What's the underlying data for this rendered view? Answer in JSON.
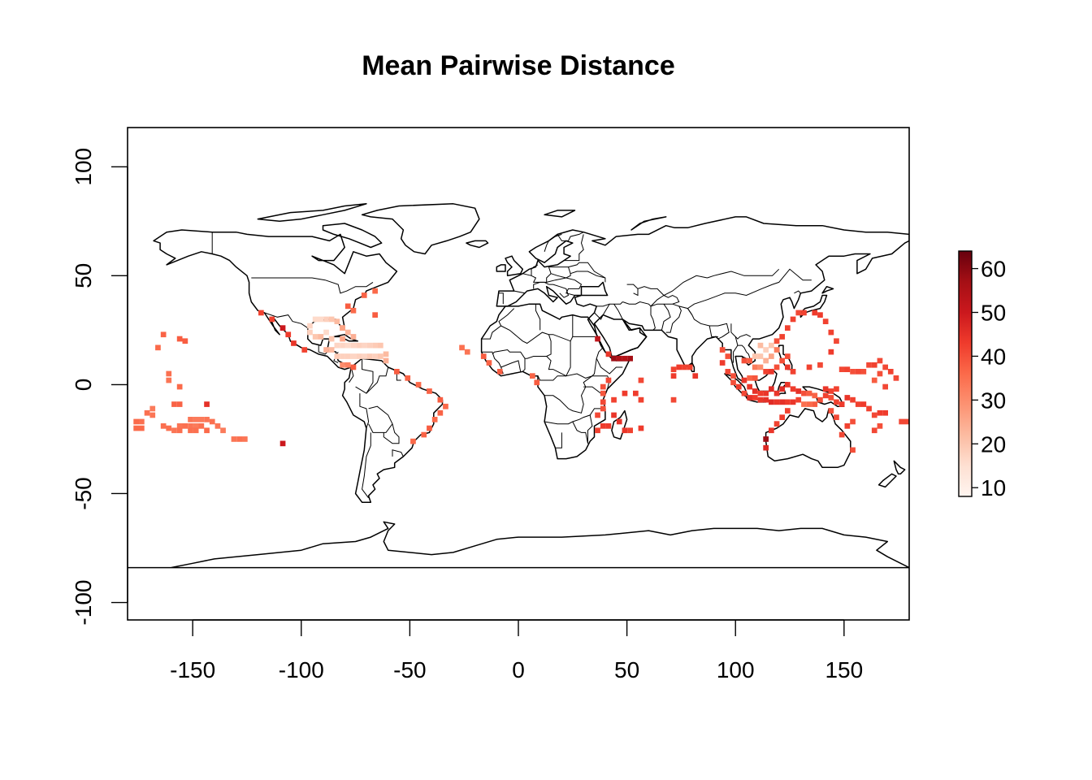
{
  "chart_data": {
    "type": "heatmap",
    "title": "Mean Pairwise Distance",
    "xlabel": "",
    "ylabel": "",
    "xlim": [
      -180,
      180
    ],
    "ylim": [
      -108,
      118
    ],
    "x_ticks": [
      -150,
      -100,
      -50,
      0,
      50,
      100,
      150
    ],
    "y_ticks": [
      -100,
      -50,
      0,
      50,
      100
    ],
    "x_tick_labels": [
      "-150",
      "-100",
      "-50",
      "0",
      "50",
      "100",
      "150"
    ],
    "y_tick_labels": [
      "-100",
      "-50",
      "0",
      "50",
      "100"
    ],
    "legend": {
      "placement": "right",
      "range": [
        8,
        64
      ],
      "ticks": [
        10,
        20,
        30,
        40,
        50,
        60
      ],
      "tick_labels": [
        "10",
        "20",
        "30",
        "40",
        "50",
        "60"
      ],
      "colors": [
        "#FFF5F0",
        "#FEE0D2",
        "#FCBBA1",
        "#FC9272",
        "#FB6A4A",
        "#EF3B2C",
        "#CB181D",
        "#A50F15",
        "#67000D"
      ]
    },
    "cell_size_deg": 2.5,
    "cells": [
      {
        "x": -176,
        "y": -17,
        "v": 36
      },
      {
        "x": -176,
        "y": -20,
        "v": 36
      },
      {
        "x": -173.5,
        "y": -17,
        "v": 35
      },
      {
        "x": -173.5,
        "y": -20,
        "v": 36
      },
      {
        "x": -171,
        "y": -13,
        "v": 35
      },
      {
        "x": -168.5,
        "y": -11,
        "v": 33
      },
      {
        "x": -168.5,
        "y": -14,
        "v": 34
      },
      {
        "x": -163.5,
        "y": -19,
        "v": 35
      },
      {
        "x": -166,
        "y": 17,
        "v": 36
      },
      {
        "x": -163.5,
        "y": 23,
        "v": 37
      },
      {
        "x": -156,
        "y": 21,
        "v": 38
      },
      {
        "x": -153.5,
        "y": 20,
        "v": 38
      },
      {
        "x": -161,
        "y": 5,
        "v": 35
      },
      {
        "x": -161,
        "y": 2,
        "v": 34
      },
      {
        "x": -156,
        "y": -1,
        "v": 36
      },
      {
        "x": -158.5,
        "y": -9,
        "v": 37
      },
      {
        "x": -156,
        "y": -9,
        "v": 37
      },
      {
        "x": -143.5,
        "y": -9,
        "v": 45
      },
      {
        "x": -151,
        "y": -16,
        "v": 34
      },
      {
        "x": -148.5,
        "y": -16,
        "v": 33
      },
      {
        "x": -146,
        "y": -16,
        "v": 33
      },
      {
        "x": -143.5,
        "y": -16,
        "v": 34
      },
      {
        "x": -141,
        "y": -17,
        "v": 35
      },
      {
        "x": -156,
        "y": -19,
        "v": 34
      },
      {
        "x": -153.5,
        "y": -19,
        "v": 35
      },
      {
        "x": -151,
        "y": -19,
        "v": 34
      },
      {
        "x": -148.5,
        "y": -19,
        "v": 33
      },
      {
        "x": -146,
        "y": -19,
        "v": 35
      },
      {
        "x": -161,
        "y": -20,
        "v": 35
      },
      {
        "x": -158.5,
        "y": -21,
        "v": 34
      },
      {
        "x": -156,
        "y": -21,
        "v": 35
      },
      {
        "x": -151,
        "y": -21,
        "v": 35
      },
      {
        "x": -148.5,
        "y": -21,
        "v": 35
      },
      {
        "x": -143.5,
        "y": -21,
        "v": 36
      },
      {
        "x": -138.5,
        "y": -19,
        "v": 34
      },
      {
        "x": -136,
        "y": -21,
        "v": 33
      },
      {
        "x": -131,
        "y": -25,
        "v": 34
      },
      {
        "x": -128.5,
        "y": -25,
        "v": 35
      },
      {
        "x": -126,
        "y": -25,
        "v": 34
      },
      {
        "x": -108.5,
        "y": -27,
        "v": 50
      },
      {
        "x": -118.5,
        "y": 33,
        "v": 42
      },
      {
        "x": -113.5,
        "y": 30,
        "v": 42
      },
      {
        "x": -108.5,
        "y": 26,
        "v": 50
      },
      {
        "x": -106,
        "y": 23,
        "v": 43
      },
      {
        "x": -103.5,
        "y": 19,
        "v": 44
      },
      {
        "x": -98.5,
        "y": 16,
        "v": 42
      },
      {
        "x": -93.5,
        "y": 30,
        "v": 16
      },
      {
        "x": -91,
        "y": 30,
        "v": 16
      },
      {
        "x": -88.5,
        "y": 30,
        "v": 18
      },
      {
        "x": -86,
        "y": 30,
        "v": 20
      },
      {
        "x": -83.5,
        "y": 29,
        "v": 22
      },
      {
        "x": -96,
        "y": 27,
        "v": 17
      },
      {
        "x": -96,
        "y": 24,
        "v": 18
      },
      {
        "x": -93.5,
        "y": 22,
        "v": 20
      },
      {
        "x": -91,
        "y": 22,
        "v": 22
      },
      {
        "x": -88.5,
        "y": 24,
        "v": 16
      },
      {
        "x": -86,
        "y": 21,
        "v": 20
      },
      {
        "x": -81,
        "y": 26,
        "v": 25
      },
      {
        "x": -78.5,
        "y": 24,
        "v": 23
      },
      {
        "x": -76,
        "y": 22,
        "v": 24
      },
      {
        "x": -81,
        "y": 21,
        "v": 26
      },
      {
        "x": -83.5,
        "y": 18,
        "v": 17
      },
      {
        "x": -81,
        "y": 18,
        "v": 17
      },
      {
        "x": -78.5,
        "y": 18,
        "v": 16
      },
      {
        "x": -76,
        "y": 18,
        "v": 17
      },
      {
        "x": -73.5,
        "y": 18,
        "v": 18
      },
      {
        "x": -71,
        "y": 18,
        "v": 17
      },
      {
        "x": -68.5,
        "y": 18,
        "v": 18
      },
      {
        "x": -66,
        "y": 18,
        "v": 19
      },
      {
        "x": -63.5,
        "y": 18,
        "v": 20
      },
      {
        "x": -83.5,
        "y": 13,
        "v": 19
      },
      {
        "x": -81,
        "y": 13,
        "v": 18
      },
      {
        "x": -78.5,
        "y": 13,
        "v": 18
      },
      {
        "x": -76,
        "y": 13,
        "v": 17
      },
      {
        "x": -73.5,
        "y": 13,
        "v": 18
      },
      {
        "x": -71,
        "y": 13,
        "v": 17
      },
      {
        "x": -68.5,
        "y": 13,
        "v": 19
      },
      {
        "x": -66,
        "y": 13,
        "v": 18
      },
      {
        "x": -63.5,
        "y": 13,
        "v": 20
      },
      {
        "x": -61,
        "y": 14,
        "v": 22
      },
      {
        "x": -61,
        "y": 11,
        "v": 24
      },
      {
        "x": -86,
        "y": 16,
        "v": 22
      },
      {
        "x": -88.5,
        "y": 16,
        "v": 24
      },
      {
        "x": -81,
        "y": 9,
        "v": 30
      },
      {
        "x": -78.5,
        "y": 9,
        "v": 32
      },
      {
        "x": -76,
        "y": 8,
        "v": 38
      },
      {
        "x": -81,
        "y": 26,
        "v": 26
      },
      {
        "x": -78.5,
        "y": 36,
        "v": 38
      },
      {
        "x": -76,
        "y": 34,
        "v": 36
      },
      {
        "x": -66,
        "y": 32,
        "v": 38
      },
      {
        "x": -71,
        "y": 41,
        "v": 37
      },
      {
        "x": -66,
        "y": 43,
        "v": 36
      },
      {
        "x": -56,
        "y": 6,
        "v": 38
      },
      {
        "x": -51,
        "y": 3,
        "v": 37
      },
      {
        "x": -46,
        "y": 0,
        "v": 36
      },
      {
        "x": -41,
        "y": -3,
        "v": 37
      },
      {
        "x": -36,
        "y": -7,
        "v": 38
      },
      {
        "x": -33.5,
        "y": -10,
        "v": 36
      },
      {
        "x": -36,
        "y": -13,
        "v": 37
      },
      {
        "x": -38.5,
        "y": -16,
        "v": 36
      },
      {
        "x": -41,
        "y": -20,
        "v": 38
      },
      {
        "x": -43.5,
        "y": -23,
        "v": 37
      },
      {
        "x": -48.5,
        "y": -26,
        "v": 36
      },
      {
        "x": -26,
        "y": 17,
        "v": 35
      },
      {
        "x": -23.5,
        "y": 15,
        "v": 34
      },
      {
        "x": -16,
        "y": 13,
        "v": 38
      },
      {
        "x": -13.5,
        "y": 10,
        "v": 37
      },
      {
        "x": -8.5,
        "y": 6,
        "v": 38
      },
      {
        "x": 6.5,
        "y": 4,
        "v": 37
      },
      {
        "x": 8.5,
        "y": 1,
        "v": 38
      },
      {
        "x": 36.5,
        "y": 21,
        "v": 52
      },
      {
        "x": 41.5,
        "y": 14,
        "v": 44
      },
      {
        "x": 44,
        "y": 12,
        "v": 58
      },
      {
        "x": 46.5,
        "y": 12,
        "v": 55
      },
      {
        "x": 49,
        "y": 12,
        "v": 54
      },
      {
        "x": 51.5,
        "y": 12,
        "v": 57
      },
      {
        "x": 41.5,
        "y": 2,
        "v": 41
      },
      {
        "x": 39,
        "y": -1,
        "v": 40
      },
      {
        "x": 39,
        "y": -4,
        "v": 39
      },
      {
        "x": 39,
        "y": -8,
        "v": 41
      },
      {
        "x": 39,
        "y": -11,
        "v": 40
      },
      {
        "x": 36.5,
        "y": -14,
        "v": 41
      },
      {
        "x": 39,
        "y": -19,
        "v": 43
      },
      {
        "x": 36.5,
        "y": -21,
        "v": 42
      },
      {
        "x": 44,
        "y": -14,
        "v": 44
      },
      {
        "x": 41.5,
        "y": -19,
        "v": 43
      },
      {
        "x": 46.5,
        "y": -17,
        "v": 45
      },
      {
        "x": 49,
        "y": -21,
        "v": 44
      },
      {
        "x": 44,
        "y": -7,
        "v": 42
      },
      {
        "x": 49,
        "y": -4,
        "v": 43
      },
      {
        "x": 56.5,
        "y": -7,
        "v": 42
      },
      {
        "x": 54,
        "y": -4,
        "v": 43
      },
      {
        "x": 56.5,
        "y": -20,
        "v": 43
      },
      {
        "x": 51.5,
        "y": -21,
        "v": 42
      },
      {
        "x": 56.5,
        "y": 2,
        "v": 41
      },
      {
        "x": 71.5,
        "y": 7,
        "v": 42
      },
      {
        "x": 71.5,
        "y": 4,
        "v": 43
      },
      {
        "x": 71.5,
        "y": -7,
        "v": 41
      },
      {
        "x": 74,
        "y": 8,
        "v": 43
      },
      {
        "x": 76.5,
        "y": 8,
        "v": 42
      },
      {
        "x": 79,
        "y": 8,
        "v": 42
      },
      {
        "x": 81.5,
        "y": 4,
        "v": 44
      },
      {
        "x": 94,
        "y": 16,
        "v": 40
      },
      {
        "x": 96.5,
        "y": 13,
        "v": 40
      },
      {
        "x": 94,
        "y": 10,
        "v": 43
      },
      {
        "x": 96.5,
        "y": 6,
        "v": 41
      },
      {
        "x": 99,
        "y": 4,
        "v": 40
      },
      {
        "x": 99,
        "y": 1,
        "v": 40
      },
      {
        "x": 101.5,
        "y": -1,
        "v": 43
      },
      {
        "x": 104,
        "y": -4,
        "v": 41
      },
      {
        "x": 104,
        "y": 11,
        "v": 40
      },
      {
        "x": 106.5,
        "y": 11,
        "v": 38
      },
      {
        "x": 109,
        "y": 13,
        "v": 20
      },
      {
        "x": 111.5,
        "y": 13,
        "v": 20
      },
      {
        "x": 114,
        "y": 16,
        "v": 18
      },
      {
        "x": 116.5,
        "y": 18,
        "v": 20
      },
      {
        "x": 111.5,
        "y": 18,
        "v": 22
      },
      {
        "x": 109,
        "y": 8,
        "v": 33
      },
      {
        "x": 111.5,
        "y": 8,
        "v": 30
      },
      {
        "x": 114,
        "y": 11,
        "v": 24
      },
      {
        "x": 116.5,
        "y": 13,
        "v": 26
      },
      {
        "x": 119,
        "y": 16,
        "v": 33
      },
      {
        "x": 119,
        "y": 20,
        "v": 40
      },
      {
        "x": 121.5,
        "y": 22,
        "v": 42
      },
      {
        "x": 114,
        "y": 6,
        "v": 42
      },
      {
        "x": 116.5,
        "y": 6,
        "v": 44
      },
      {
        "x": 119,
        "y": 8,
        "v": 40
      },
      {
        "x": 121.5,
        "y": 11,
        "v": 40
      },
      {
        "x": 124,
        "y": 13,
        "v": 40
      },
      {
        "x": 124,
        "y": 8,
        "v": 44
      },
      {
        "x": 126.5,
        "y": 6,
        "v": 42
      },
      {
        "x": 106.5,
        "y": 3,
        "v": 37
      },
      {
        "x": 109,
        "y": 3,
        "v": 39
      },
      {
        "x": 104,
        "y": 2,
        "v": 44
      },
      {
        "x": 106.5,
        "y": -1,
        "v": 44
      },
      {
        "x": 109,
        "y": -3,
        "v": 45
      },
      {
        "x": 111.5,
        "y": -4,
        "v": 43
      },
      {
        "x": 114,
        "y": -4,
        "v": 44
      },
      {
        "x": 116.5,
        "y": -2,
        "v": 46
      },
      {
        "x": 119,
        "y": -4,
        "v": 44
      },
      {
        "x": 121.5,
        "y": -2,
        "v": 46
      },
      {
        "x": 124,
        "y": 0,
        "v": 44
      },
      {
        "x": 126.5,
        "y": -2,
        "v": 43
      },
      {
        "x": 129,
        "y": -3,
        "v": 45
      },
      {
        "x": 106.5,
        "y": -6,
        "v": 45
      },
      {
        "x": 109,
        "y": -6,
        "v": 43
      },
      {
        "x": 111.5,
        "y": -7,
        "v": 44
      },
      {
        "x": 114,
        "y": -7,
        "v": 45
      },
      {
        "x": 116.5,
        "y": -8,
        "v": 46
      },
      {
        "x": 119,
        "y": -8,
        "v": 44
      },
      {
        "x": 121.5,
        "y": -8,
        "v": 45
      },
      {
        "x": 124,
        "y": -8,
        "v": 43
      },
      {
        "x": 126.5,
        "y": -8,
        "v": 44
      },
      {
        "x": 129,
        "y": -7,
        "v": 42
      },
      {
        "x": 131.5,
        "y": -4,
        "v": 40
      },
      {
        "x": 134,
        "y": -4,
        "v": 38
      },
      {
        "x": 136.5,
        "y": -5,
        "v": 37
      },
      {
        "x": 131.5,
        "y": -9,
        "v": 35
      },
      {
        "x": 134,
        "y": -9,
        "v": 36
      },
      {
        "x": 136.5,
        "y": -9,
        "v": 38
      },
      {
        "x": 139,
        "y": -7,
        "v": 40
      },
      {
        "x": 141.5,
        "y": -5,
        "v": 42
      },
      {
        "x": 144,
        "y": -6,
        "v": 40
      },
      {
        "x": 146.5,
        "y": -8,
        "v": 42
      },
      {
        "x": 149,
        "y": -9,
        "v": 43
      },
      {
        "x": 151.5,
        "y": -6,
        "v": 44
      },
      {
        "x": 154,
        "y": -7,
        "v": 42
      },
      {
        "x": 141.5,
        "y": -2,
        "v": 44
      },
      {
        "x": 144,
        "y": -3,
        "v": 42
      },
      {
        "x": 146.5,
        "y": -2,
        "v": 42
      },
      {
        "x": 124,
        "y": -12,
        "v": 42
      },
      {
        "x": 121.5,
        "y": -15,
        "v": 43
      },
      {
        "x": 119,
        "y": -18,
        "v": 42
      },
      {
        "x": 116.5,
        "y": -21,
        "v": 44
      },
      {
        "x": 114,
        "y": -25,
        "v": 58
      },
      {
        "x": 114,
        "y": -29,
        "v": 47
      },
      {
        "x": 124,
        "y": 26,
        "v": 42
      },
      {
        "x": 126.5,
        "y": 30,
        "v": 42
      },
      {
        "x": 129,
        "y": 33,
        "v": 41
      },
      {
        "x": 131.5,
        "y": 33,
        "v": 42
      },
      {
        "x": 136.5,
        "y": 33,
        "v": 43
      },
      {
        "x": 139,
        "y": 32,
        "v": 43
      },
      {
        "x": 141.5,
        "y": 29,
        "v": 42
      },
      {
        "x": 144,
        "y": 24,
        "v": 42
      },
      {
        "x": 146.5,
        "y": 20,
        "v": 41
      },
      {
        "x": 144,
        "y": 15,
        "v": 43
      },
      {
        "x": 139,
        "y": 9,
        "v": 41
      },
      {
        "x": 134,
        "y": 8,
        "v": 42
      },
      {
        "x": 149,
        "y": 7,
        "v": 41
      },
      {
        "x": 151.5,
        "y": 7,
        "v": 42
      },
      {
        "x": 154,
        "y": 6,
        "v": 40
      },
      {
        "x": 156.5,
        "y": 6,
        "v": 41
      },
      {
        "x": 159,
        "y": 6,
        "v": 40
      },
      {
        "x": 161.5,
        "y": 9,
        "v": 41
      },
      {
        "x": 164,
        "y": 9,
        "v": 42
      },
      {
        "x": 166.5,
        "y": 11,
        "v": 41
      },
      {
        "x": 166.5,
        "y": 5,
        "v": 40
      },
      {
        "x": 169,
        "y": 8,
        "v": 41
      },
      {
        "x": 171.5,
        "y": 6,
        "v": 42
      },
      {
        "x": 164,
        "y": 2,
        "v": 38
      },
      {
        "x": 174,
        "y": 3,
        "v": 41
      },
      {
        "x": 169,
        "y": -1,
        "v": 41
      },
      {
        "x": 156.5,
        "y": -9,
        "v": 42
      },
      {
        "x": 159,
        "y": -9,
        "v": 43
      },
      {
        "x": 161.5,
        "y": -11,
        "v": 42
      },
      {
        "x": 164,
        "y": -14,
        "v": 41
      },
      {
        "x": 166.5,
        "y": -13,
        "v": 43
      },
      {
        "x": 169,
        "y": -13,
        "v": 43
      },
      {
        "x": 166.5,
        "y": -19,
        "v": 40
      },
      {
        "x": 164,
        "y": -21,
        "v": 41
      },
      {
        "x": 176.5,
        "y": -17,
        "v": 41
      },
      {
        "x": 179,
        "y": -17,
        "v": 41
      },
      {
        "x": 154,
        "y": -17,
        "v": 40
      },
      {
        "x": 151.5,
        "y": -19,
        "v": 42
      },
      {
        "x": 144,
        "y": -12,
        "v": 40
      },
      {
        "x": 146.5,
        "y": -15,
        "v": 41
      },
      {
        "x": 149,
        "y": -23,
        "v": 41
      },
      {
        "x": 154,
        "y": -30,
        "v": 40
      }
    ]
  }
}
